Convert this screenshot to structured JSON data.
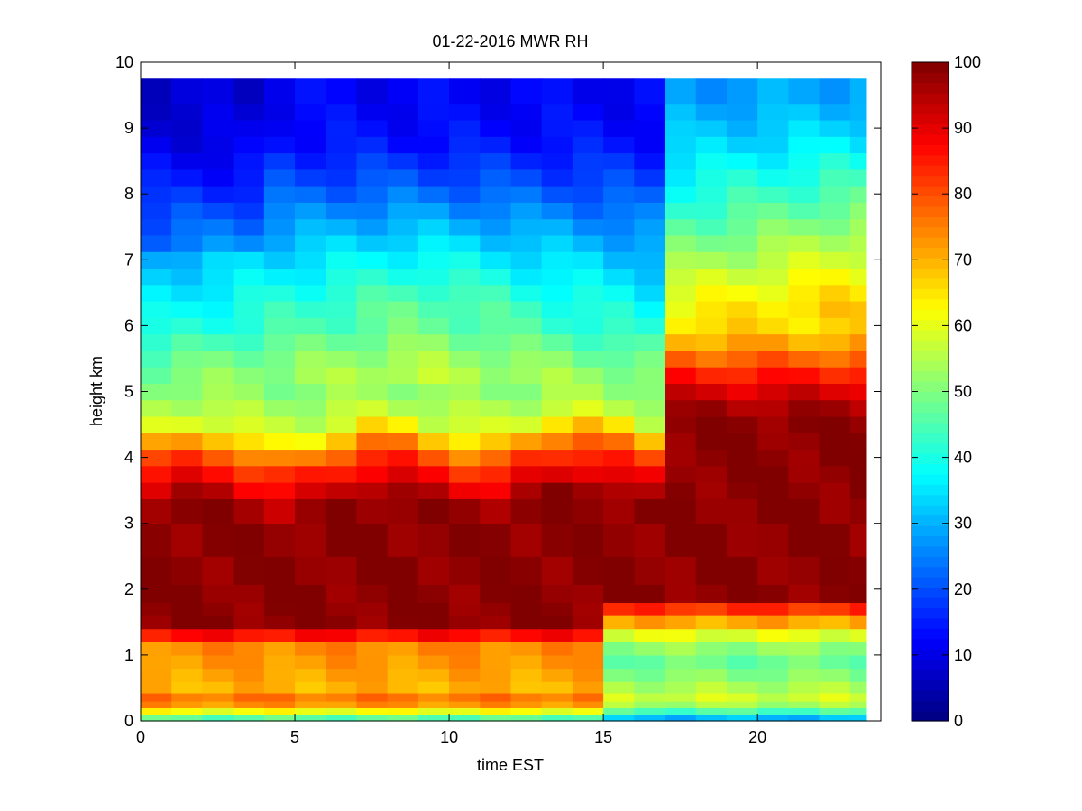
{
  "chart_data": {
    "type": "heatmap",
    "title": "01-22-2016 MWR RH",
    "xlabel": "time EST",
    "ylabel": "height km",
    "xlim": [
      0,
      24
    ],
    "ylim": [
      0,
      10
    ],
    "x_ticks": [
      0,
      5,
      10,
      15,
      20
    ],
    "y_ticks": [
      0,
      1,
      2,
      3,
      4,
      5,
      6,
      7,
      8,
      9,
      10
    ],
    "colorbar": {
      "colormap": "jet",
      "range": [
        0,
        100
      ],
      "ticks": [
        0,
        10,
        20,
        30,
        40,
        50,
        60,
        70,
        80,
        90,
        100
      ]
    },
    "x": [
      0,
      1,
      2,
      3,
      4,
      5,
      6,
      7,
      8,
      9,
      10,
      11,
      12,
      13,
      14,
      15,
      16,
      17,
      18,
      19,
      20,
      21,
      22,
      23
    ],
    "y": [
      0.05,
      0.15,
      0.25,
      0.35,
      0.5,
      0.7,
      0.9,
      1.1,
      1.3,
      1.5,
      1.7,
      1.9,
      2.25,
      2.75,
      3.25,
      3.5,
      3.75,
      4.0,
      4.25,
      4.5,
      4.75,
      5.0,
      5.25,
      5.5,
      5.75,
      6.0,
      6.25,
      6.5,
      6.75,
      7.0,
      7.25,
      7.5,
      7.75,
      8.0,
      8.25,
      8.5,
      8.75,
      9.0,
      9.25,
      9.5
    ],
    "grid": false,
    "colorbar_position": "right"
  }
}
